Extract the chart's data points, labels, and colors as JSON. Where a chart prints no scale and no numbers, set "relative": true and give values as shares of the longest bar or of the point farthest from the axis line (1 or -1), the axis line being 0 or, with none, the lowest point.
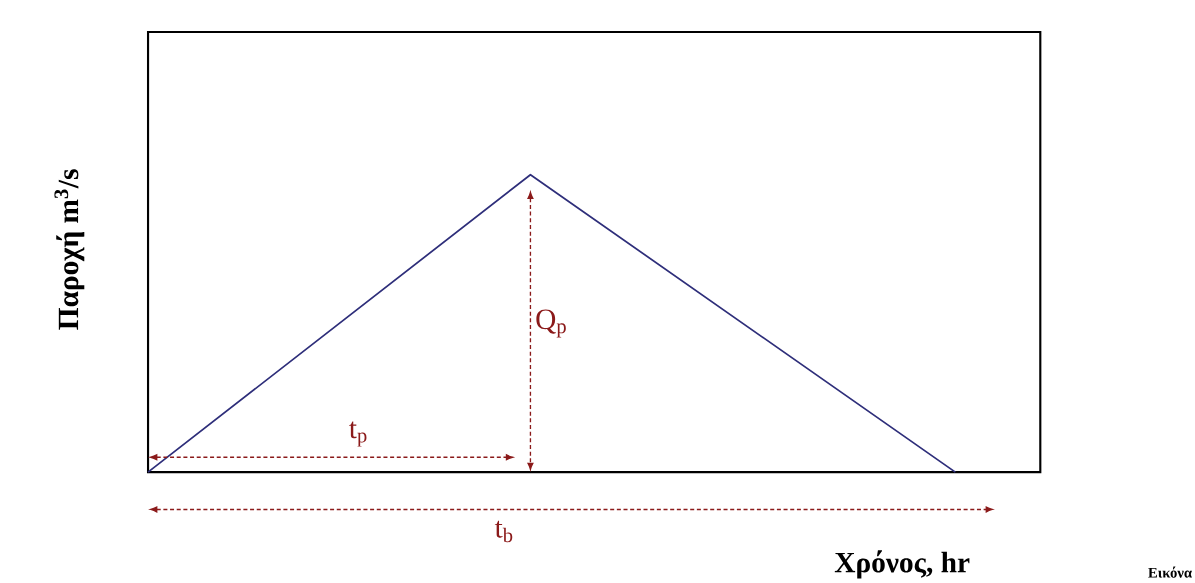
{
  "chart_data": {
    "type": "line",
    "relative": true,
    "categories": [
      null,
      null,
      null,
      null,
      null,
      null,
      null,
      null,
      null,
      null,
      null,
      null,
      null,
      null,
      null,
      null,
      null,
      null,
      null,
      null,
      null,
      null
    ],
    "tick_labels": false,
    "marker": "none",
    "line_style": "solid",
    "series": [
      {
        "color": "#2e2e7a",
        "values": [
          0,
          null,
          null,
          null,
          null,
          null,
          null,
          null,
          null,
          1,
          null,
          null,
          null,
          null,
          null,
          null,
          null,
          null,
          null,
          0,
          null,
          null
        ]
      }
    ],
    "ylabel": "Παροχή m$^{3}$/s",
    "xlabel": "Χρόνος, hr",
    "annotations": [
      "Q$_{p}$",
      "t$_{p}$",
      "t$_{b}$",
      "Εικόνα"
    ]
  }
}
